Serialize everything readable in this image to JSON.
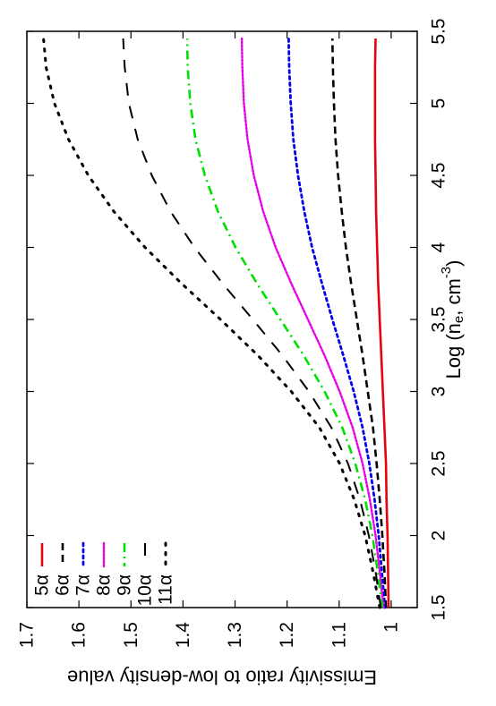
{
  "chart_data": {
    "type": "line",
    "xlabel": "Log (n_e, cm^-3)",
    "xlabel_parts": {
      "main": "Log (n",
      "sub": "e",
      "mid": ", cm",
      "sup": "-3",
      "end": ")"
    },
    "ylabel": "Emissivity ratio to low-density value",
    "xlim": [
      1.5,
      5.5
    ],
    "ylim": [
      0.95,
      1.7
    ],
    "x_ticks": [
      1.5,
      2,
      2.5,
      3,
      3.5,
      4,
      4.5,
      5,
      5.5
    ],
    "x_tick_labels": [
      "1.5",
      "2",
      "2.5",
      "3",
      "3.5",
      "4",
      "4.5",
      "5",
      "5.5"
    ],
    "y_ticks": [
      1,
      1.1,
      1.2,
      1.3,
      1.4,
      1.5,
      1.6,
      1.7
    ],
    "y_tick_labels": [
      "1",
      "1.1",
      "1.2",
      "1.3",
      "1.4",
      "1.5",
      "1.6",
      "1.7"
    ],
    "grid": false,
    "legend_position": "top-left",
    "orientation": "rotated 90 degrees clockwise",
    "x": [
      1.5,
      1.75,
      2.0,
      2.25,
      2.5,
      2.75,
      3.0,
      3.25,
      3.5,
      3.75,
      4.0,
      4.25,
      4.5,
      4.75,
      5.0,
      5.25,
      5.45
    ],
    "series": [
      {
        "name": "5α",
        "color": "#e8000b",
        "dash": "solid",
        "values": [
          1.005,
          1.006,
          1.007,
          1.009,
          1.01,
          1.013,
          1.016,
          1.019,
          1.022,
          1.025,
          1.027,
          1.029,
          1.03,
          1.031,
          1.031,
          1.031,
          1.03
        ]
      },
      {
        "name": "6α",
        "color": "#000000",
        "dash": "dash",
        "values": [
          1.01,
          1.013,
          1.017,
          1.022,
          1.028,
          1.035,
          1.045,
          1.055,
          1.066,
          1.077,
          1.087,
          1.095,
          1.102,
          1.107,
          1.11,
          1.112,
          1.113
        ]
      },
      {
        "name": "7α",
        "color": "#0000e8",
        "dash": "dot",
        "values": [
          1.012,
          1.018,
          1.024,
          1.032,
          1.042,
          1.055,
          1.072,
          1.092,
          1.113,
          1.133,
          1.152,
          1.167,
          1.179,
          1.188,
          1.193,
          1.196,
          1.197
        ]
      },
      {
        "name": "8α",
        "color": "#e800e8",
        "dash": "dot-fine",
        "values": [
          1.015,
          1.022,
          1.03,
          1.041,
          1.055,
          1.074,
          1.099,
          1.128,
          1.16,
          1.192,
          1.222,
          1.246,
          1.264,
          1.276,
          1.283,
          1.286,
          1.287
        ]
      },
      {
        "name": "9α",
        "color": "#00e000",
        "dash": "dashdot",
        "values": [
          1.017,
          1.026,
          1.036,
          1.05,
          1.069,
          1.094,
          1.128,
          1.168,
          1.213,
          1.258,
          1.299,
          1.333,
          1.358,
          1.376,
          1.386,
          1.391,
          1.392
        ]
      },
      {
        "name": "10α",
        "color": "#000000",
        "dash": "long-dash",
        "values": [
          1.02,
          1.03,
          1.043,
          1.06,
          1.083,
          1.115,
          1.158,
          1.209,
          1.266,
          1.324,
          1.378,
          1.424,
          1.46,
          1.487,
          1.504,
          1.512,
          1.515
        ]
      },
      {
        "name": "11α",
        "color": "#000000",
        "dash": "dot-sparse",
        "values": [
          1.022,
          1.035,
          1.05,
          1.071,
          1.099,
          1.138,
          1.192,
          1.256,
          1.328,
          1.403,
          1.473,
          1.533,
          1.582,
          1.62,
          1.647,
          1.663,
          1.668
        ]
      }
    ]
  }
}
